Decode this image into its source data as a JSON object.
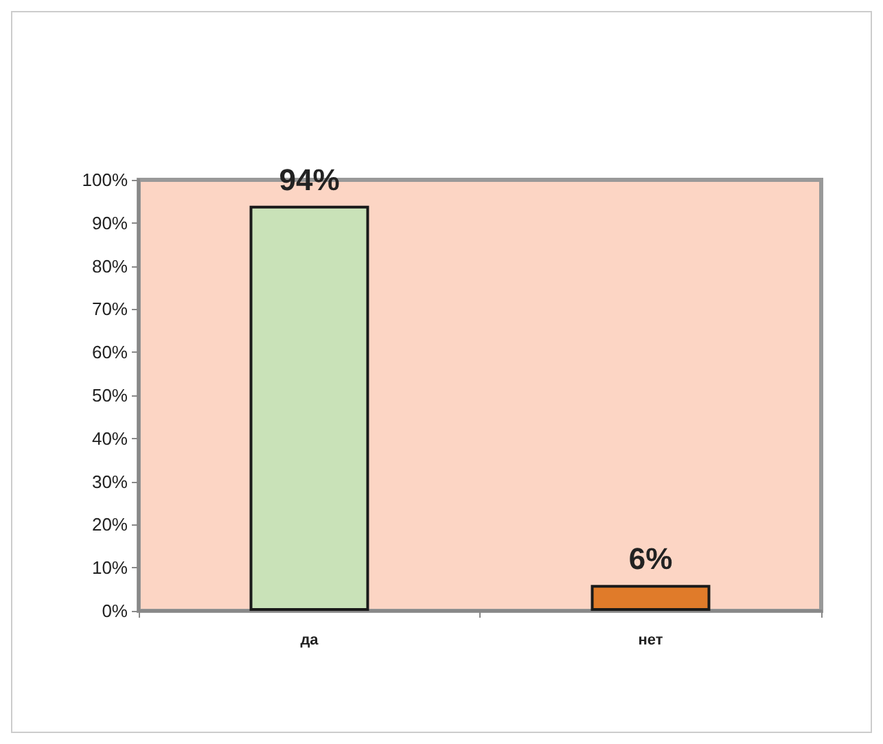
{
  "chart_data": {
    "type": "bar",
    "categories": [
      "да",
      "нет"
    ],
    "values": [
      94,
      6
    ],
    "colors": [
      "#c9e2b8",
      "#e07b2a"
    ],
    "value_labels": [
      "94%",
      "6%"
    ],
    "ylim": [
      0,
      100
    ],
    "yticks": [
      {
        "value": 0,
        "label": "0%"
      },
      {
        "value": 10,
        "label": "10%"
      },
      {
        "value": 20,
        "label": "20%"
      },
      {
        "value": 30,
        "label": "30%"
      },
      {
        "value": 40,
        "label": "40%"
      },
      {
        "value": 50,
        "label": "50%"
      },
      {
        "value": 60,
        "label": "60%"
      },
      {
        "value": 70,
        "label": "70%"
      },
      {
        "value": 80,
        "label": "80%"
      },
      {
        "value": 90,
        "label": "90%"
      },
      {
        "value": 100,
        "label": "100%"
      }
    ],
    "grid": false
  }
}
